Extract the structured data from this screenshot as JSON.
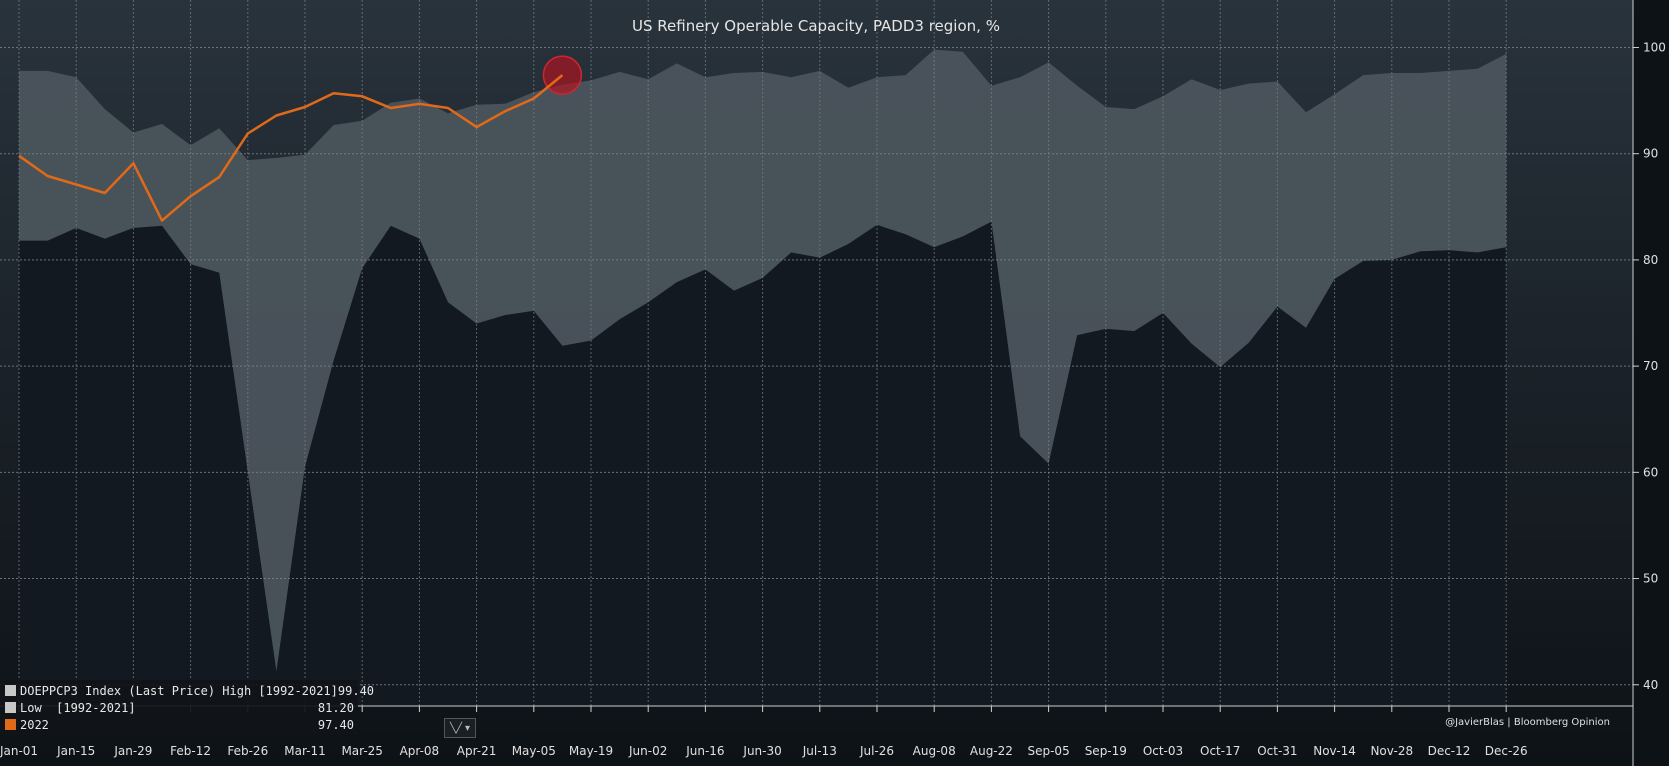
{
  "chart_data": {
    "type": "area",
    "title": "US Refinery Operable Capacity, PADD3 region, %",
    "x_ticks": [
      "Jan-01",
      "Jan-15",
      "Jan-29",
      "Feb-12",
      "Feb-26",
      "Mar-11",
      "Mar-25",
      "Apr-08",
      "Apr-21",
      "May-05",
      "May-19",
      "Jun-02",
      "Jun-16",
      "Jun-30",
      "Jul-13",
      "Jul-26",
      "Aug-08",
      "Aug-22",
      "Sep-05",
      "Sep-19",
      "Oct-03",
      "Oct-17",
      "Oct-31",
      "Nov-14",
      "Nov-28",
      "Dec-12",
      "Dec-26"
    ],
    "y_ticks": [
      40,
      50,
      60,
      70,
      80,
      90,
      100
    ],
    "ylim": [
      38,
      104
    ],
    "weeks": 53,
    "series": [
      {
        "name": "DOEPPCP3 Index (Last Price) High [1992-2021]",
        "color": "#4a535b",
        "values": [
          97.8,
          97.8,
          97.2,
          94.2,
          92.0,
          92.8,
          90.8,
          92.4,
          89.4,
          89.6,
          89.9,
          92.7,
          93.1,
          94.8,
          95.2,
          93.8,
          94.6,
          94.7,
          95.8,
          96.5,
          96.9,
          97.7,
          97.0,
          98.5,
          97.2,
          97.6,
          97.7,
          97.2,
          97.8,
          96.2,
          97.2,
          97.4,
          99.8,
          99.6,
          96.4,
          97.2,
          98.6,
          96.4,
          94.4,
          94.2,
          95.4,
          97.0,
          96.0,
          96.6,
          96.8,
          93.9,
          95.6,
          97.4,
          97.6,
          97.6,
          97.8,
          98.0,
          99.4
        ]
      },
      {
        "name": "Low  [1992-2021]",
        "color": "#121920",
        "values": [
          81.8,
          81.8,
          83.0,
          82.0,
          83.0,
          83.2,
          79.6,
          78.8,
          60.0,
          41.2,
          60.5,
          70.5,
          79.2,
          83.2,
          82.0,
          76.0,
          74.0,
          74.8,
          75.2,
          71.9,
          72.4,
          74.4,
          76.0,
          77.9,
          79.1,
          77.1,
          78.3,
          80.7,
          80.2,
          81.5,
          83.3,
          82.4,
          81.2,
          82.2,
          83.6,
          63.4,
          60.8,
          72.9,
          73.5,
          73.3,
          75.0,
          72.1,
          69.9,
          72.2,
          75.6,
          73.6,
          78.2,
          79.9,
          80.0,
          80.8,
          80.9,
          80.7,
          81.2
        ]
      },
      {
        "name": "2022",
        "color": "#e06a18",
        "values": [
          89.8,
          87.9,
          87.1,
          86.3,
          89.1,
          83.7,
          86.0,
          87.8,
          91.9,
          93.6,
          94.4,
          95.7,
          95.4,
          94.3,
          94.7,
          94.3,
          92.5,
          94.0,
          95.2,
          97.4
        ]
      }
    ],
    "legend_values": [
      "99.40",
      "81.20",
      "97.40"
    ],
    "legend_placement": "bottom-left",
    "highlight": {
      "series": "2022",
      "week_index": 19,
      "value": 97.4
    },
    "grid": true
  },
  "credit": "@JavierBlas | Bloomberg Opinion",
  "colors": {
    "background_top": "#28323b",
    "background_bottom": "#0d1216",
    "grid": "#6a7178",
    "line_2022": "#e06a18",
    "highlight": "#c0202a"
  }
}
